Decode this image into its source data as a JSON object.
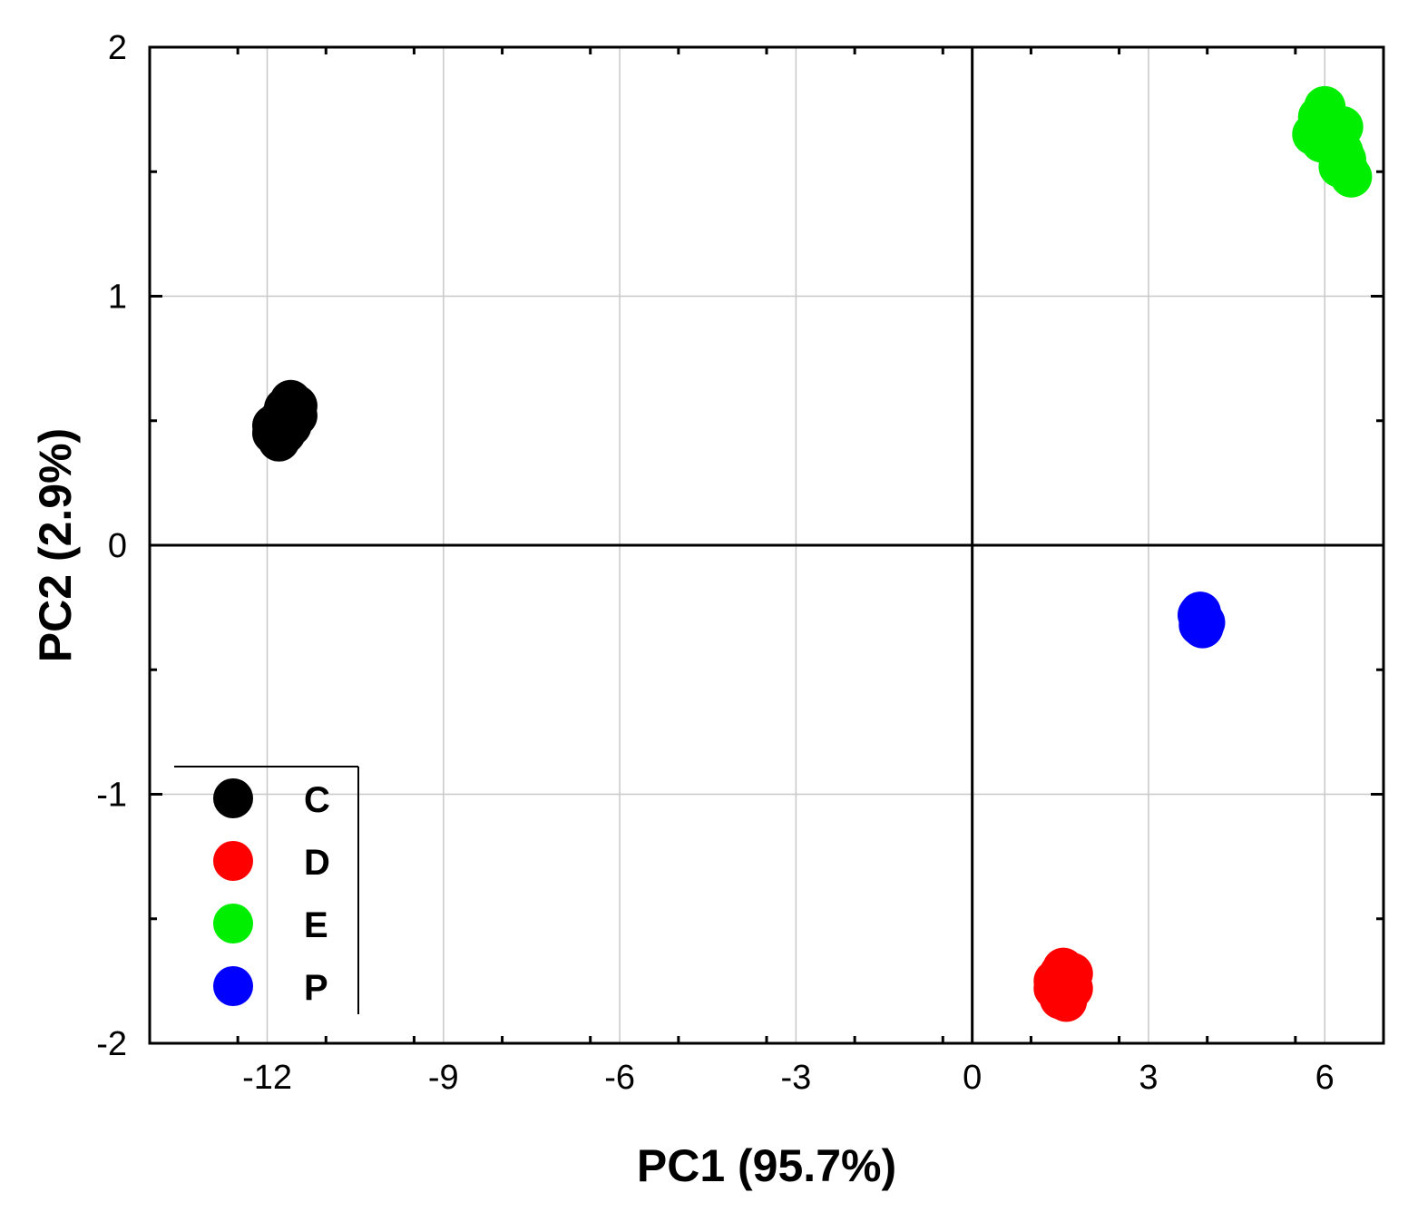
{
  "chart_data": {
    "type": "scatter",
    "title": "",
    "xlabel": "PC1 (95.7%)",
    "ylabel": "PC2 (2.9%)",
    "xlim": [
      -14,
      7
    ],
    "ylim": [
      -2,
      2
    ],
    "x_ticks": [
      -12,
      -9,
      -6,
      -3,
      0,
      3,
      6
    ],
    "y_ticks": [
      -2,
      -1,
      0,
      1,
      2
    ],
    "x_tick_labels": [
      "-12",
      "-9",
      "-6",
      "-3",
      "0",
      "3",
      "6"
    ],
    "y_tick_labels": [
      "-2",
      "-1",
      "0",
      "1",
      "2"
    ],
    "grid": true,
    "zero_lines": true,
    "legend_position": "bottom-left",
    "series": [
      {
        "name": "C",
        "color": "#000000",
        "points": [
          [
            -11.9,
            0.45
          ],
          [
            -11.8,
            0.5
          ],
          [
            -11.7,
            0.55
          ],
          [
            -11.6,
            0.58
          ],
          [
            -11.5,
            0.56
          ],
          [
            -11.7,
            0.45
          ],
          [
            -11.6,
            0.48
          ],
          [
            -11.8,
            0.42
          ],
          [
            -11.5,
            0.52
          ],
          [
            -11.9,
            0.48
          ]
        ]
      },
      {
        "name": "D",
        "color": "#ff0000",
        "points": [
          [
            1.4,
            -1.78
          ],
          [
            1.5,
            -1.72
          ],
          [
            1.6,
            -1.75
          ],
          [
            1.7,
            -1.78
          ],
          [
            1.5,
            -1.82
          ],
          [
            1.6,
            -1.83
          ],
          [
            1.4,
            -1.75
          ],
          [
            1.7,
            -1.72
          ],
          [
            1.55,
            -1.7
          ]
        ]
      },
      {
        "name": "E",
        "color": "#00ee00",
        "points": [
          [
            5.8,
            1.65
          ],
          [
            5.9,
            1.72
          ],
          [
            6.0,
            1.76
          ],
          [
            6.1,
            1.7
          ],
          [
            6.2,
            1.65
          ],
          [
            6.3,
            1.58
          ],
          [
            6.4,
            1.5
          ],
          [
            6.35,
            1.55
          ],
          [
            6.3,
            1.68
          ],
          [
            5.95,
            1.62
          ],
          [
            6.25,
            1.52
          ],
          [
            6.45,
            1.48
          ]
        ]
      },
      {
        "name": "P",
        "color": "#0000ff",
        "points": [
          [
            3.85,
            -0.28
          ],
          [
            3.9,
            -0.3
          ],
          [
            3.95,
            -0.31
          ],
          [
            3.88,
            -0.27
          ],
          [
            3.92,
            -0.33
          ],
          [
            3.87,
            -0.32
          ]
        ]
      }
    ]
  }
}
